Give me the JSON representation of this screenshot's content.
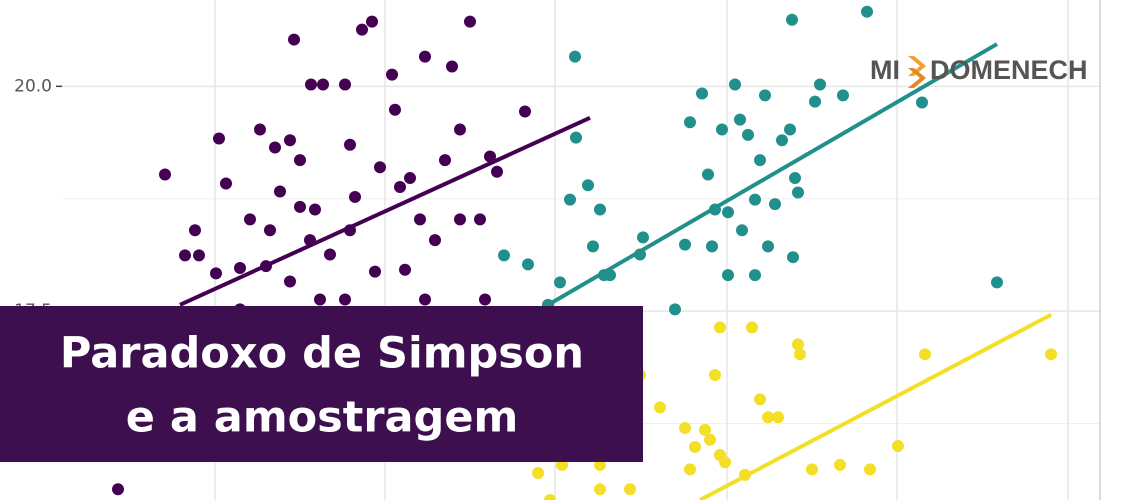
{
  "chart_data": {
    "type": "scatter",
    "ylim": [
      15.4,
      20.96
    ],
    "yticks": [
      {
        "value": 20,
        "label": "20.0"
      },
      {
        "value": 17.5,
        "label": "17.5"
      }
    ],
    "yminor": [
      18.75,
      16.25
    ],
    "xlim": [
      0,
      11.45
    ],
    "xticks": [
      2.15,
      3.85,
      5.55,
      7.27,
      8.97,
      10.68
    ],
    "grid": true,
    "series": [
      {
        "color": "#440154",
        "x": [
          1.65,
          1.85,
          1.99,
          1.95,
          2.16,
          2.19,
          2.26,
          2.4,
          2.5,
          2.6,
          2.66,
          2.7,
          2.75,
          2.8,
          2.9,
          2.94,
          3.0,
          3.11,
          3.1,
          3.15,
          3.23,
          3.3,
          3.45,
          3.5,
          3.55,
          3.62,
          3.72,
          3.75,
          3.8,
          3.92,
          4.0,
          4.1,
          4.2,
          4.25,
          4.35,
          4.52,
          4.6,
          4.7,
          4.8,
          4.9,
          4.97,
          5.25,
          4.6,
          3.95,
          3.5,
          3.0,
          1.18,
          2.4,
          2.9,
          3.2,
          4.25,
          4.85,
          3.45,
          4.05,
          4.45
        ],
        "values": [
          19.02,
          18.12,
          18.12,
          18.4,
          17.92,
          19.42,
          18.92,
          17.98,
          18.52,
          19.52,
          18.0,
          18.4,
          19.32,
          18.83,
          19.4,
          20.52,
          18.66,
          20.02,
          18.29,
          18.63,
          20.02,
          18.13,
          20.02,
          18.4,
          18.77,
          20.63,
          20.72,
          17.94,
          19.1,
          20.13,
          18.88,
          18.98,
          18.52,
          20.33,
          18.29,
          20.22,
          18.52,
          20.72,
          18.52,
          19.22,
          19.05,
          19.72,
          19.52,
          19.74,
          19.35,
          19.18,
          15.52,
          17.52,
          17.83,
          17.63,
          17.63,
          17.63,
          17.63,
          17.96,
          19.18
        ]
      },
      {
        "color": "#21908c",
        "x": [
          5.75,
          5.76,
          5.88,
          5.7,
          6.0,
          5.93,
          6.04,
          6.43,
          6.75,
          6.9,
          7.02,
          7.08,
          7.12,
          7.15,
          7.22,
          7.28,
          7.35,
          7.4,
          7.42,
          7.48,
          7.55,
          7.6,
          7.65,
          7.68,
          7.75,
          7.82,
          7.9,
          7.92,
          7.95,
          7.98,
          8.15,
          8.2,
          8.43,
          8.67,
          9.22,
          9.97,
          5.04,
          5.28,
          5.6,
          5.48,
          6.1,
          6.4,
          6.85,
          7.55,
          7.28,
          7.93
        ],
        "values": [
          20.33,
          19.43,
          18.9,
          18.74,
          18.63,
          18.22,
          17.9,
          18.32,
          17.52,
          19.6,
          19.92,
          19.02,
          18.22,
          18.63,
          19.52,
          18.6,
          20.02,
          19.63,
          18.4,
          19.46,
          18.74,
          19.18,
          19.9,
          18.22,
          18.69,
          19.4,
          19.52,
          20.74,
          18.98,
          18.82,
          19.83,
          20.02,
          19.9,
          20.83,
          19.82,
          17.82,
          18.12,
          18.02,
          17.82,
          17.57,
          17.9,
          18.13,
          18.24,
          17.9,
          17.9,
          18.1
        ]
      },
      {
        "color": "#f2df26",
        "x": [
          5.38,
          5.62,
          5.5,
          6.0,
          6.3,
          6.6,
          6.4,
          6.85,
          6.95,
          7.05,
          7.1,
          7.15,
          7.2,
          7.25,
          7.45,
          7.52,
          7.6,
          7.68,
          7.78,
          7.98,
          8.0,
          8.12,
          8.4,
          8.7,
          8.98,
          9.25,
          10.51,
          7.2,
          6.9,
          6.0
        ],
        "values": [
          15.7,
          15.79,
          15.4,
          15.79,
          15.52,
          16.43,
          16.79,
          16.2,
          15.99,
          16.18,
          16.07,
          16.79,
          15.9,
          15.82,
          15.68,
          17.32,
          16.52,
          16.32,
          16.32,
          17.13,
          17.02,
          15.74,
          15.79,
          15.74,
          16.0,
          17.02,
          17.02,
          17.32,
          15.74,
          15.52
        ]
      }
    ],
    "fits": [
      {
        "color": "#440154",
        "x": [
          1.8,
          5.9
        ],
        "values": [
          17.57,
          19.65
        ]
      },
      {
        "color": "#21908c",
        "x": [
          5.48,
          9.97
        ],
        "values": [
          17.57,
          20.47
        ]
      },
      {
        "color": "#f2df26",
        "x": [
          7.0,
          10.51
        ],
        "values": [
          15.4,
          17.46
        ]
      }
    ],
    "title_lines": [
      "Paradoxo de Simpson",
      "e a amostragem"
    ]
  },
  "logo": {
    "left": "MI",
    "right": "DOMENECH"
  }
}
